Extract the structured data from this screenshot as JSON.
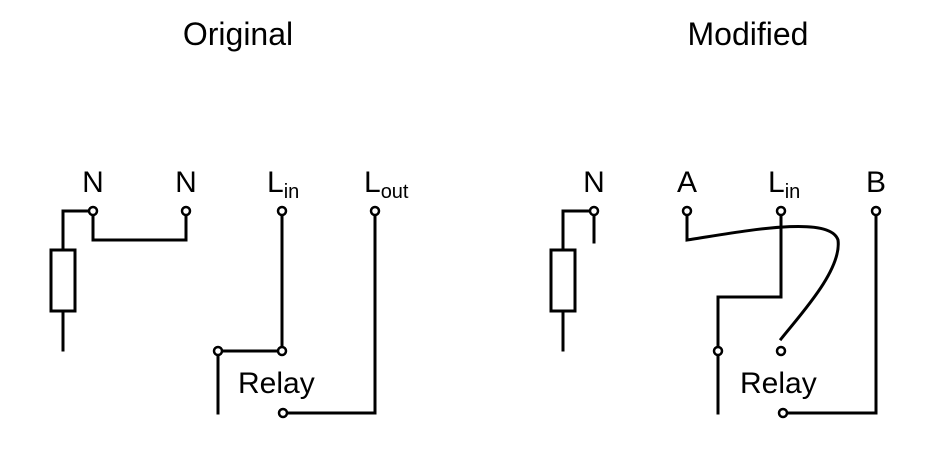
{
  "panels": {
    "original": {
      "title": "Original",
      "labels": {
        "n1": "N",
        "n2": "N",
        "lin": "L",
        "lin_sub": "in",
        "lout": "L",
        "lout_sub": "out",
        "relay": "Relay"
      }
    },
    "modified": {
      "title": "Modified",
      "labels": {
        "n": "N",
        "a": "A",
        "lin": "L",
        "lin_sub": "in",
        "b": "B",
        "relay": "Relay"
      }
    }
  }
}
